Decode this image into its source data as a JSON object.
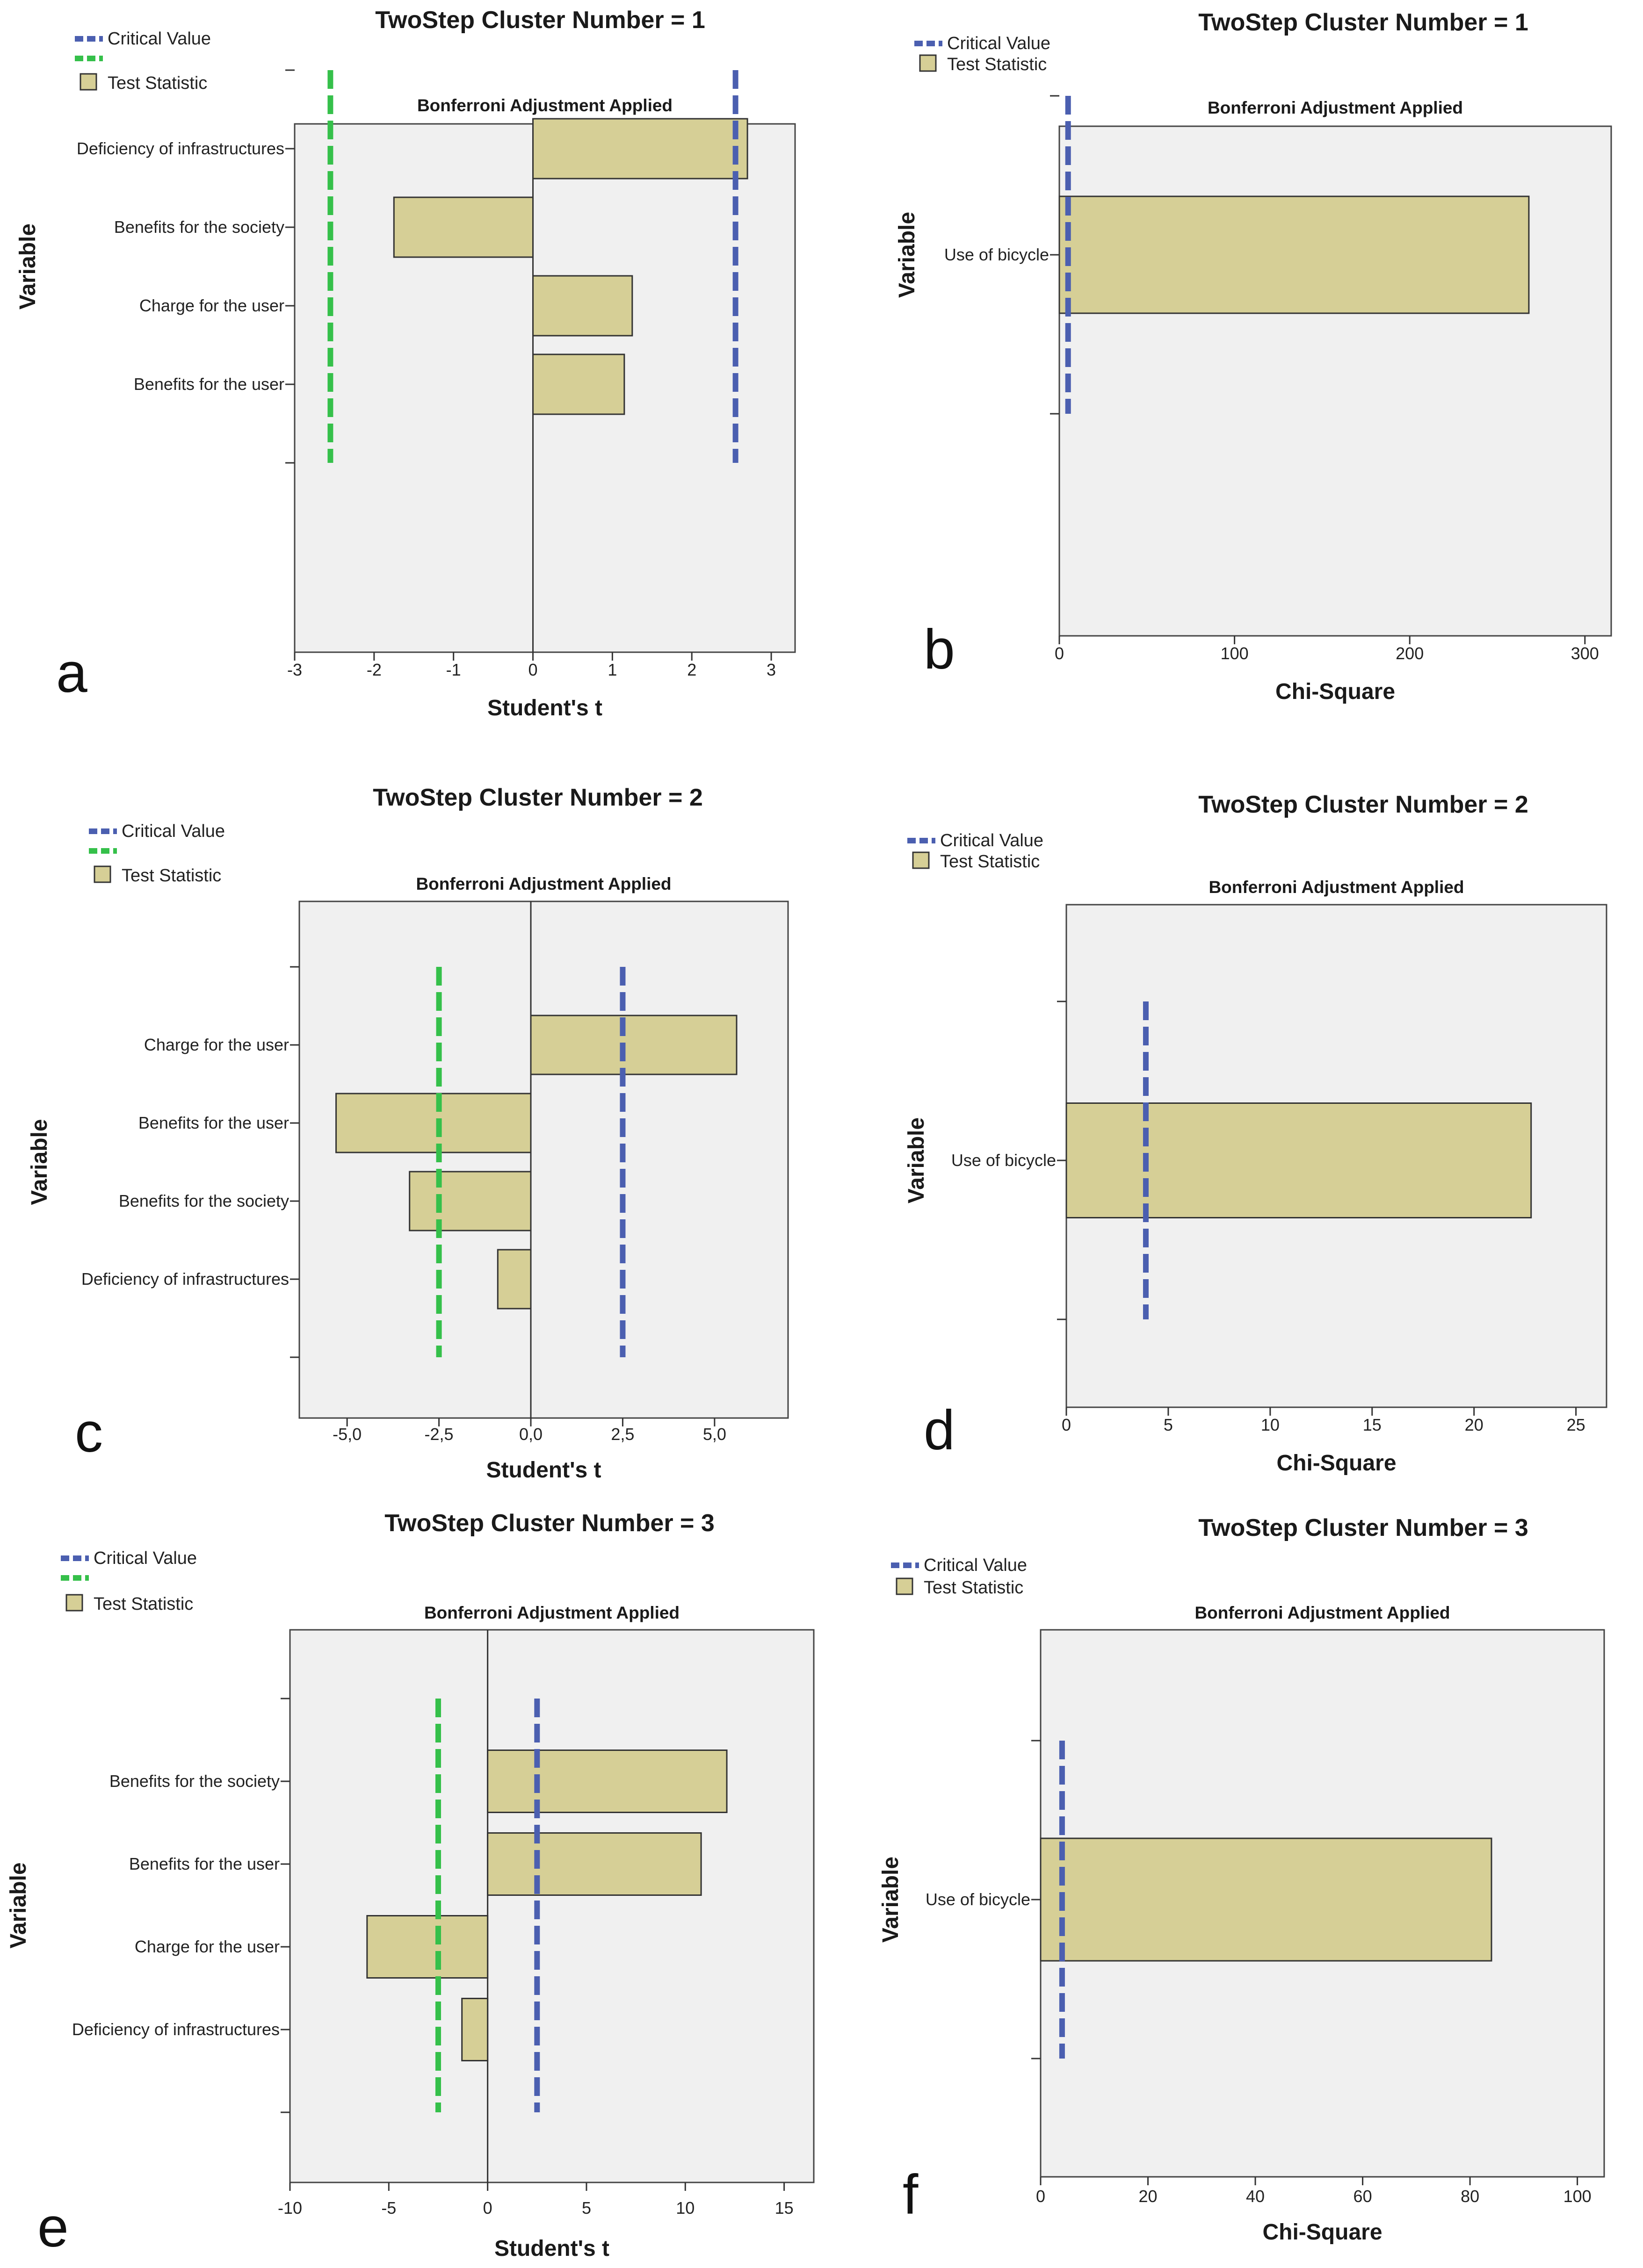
{
  "legend": {
    "critical_value": "Critical Value",
    "test_statistic": "Test Statistic"
  },
  "colors": {
    "bar_fill": "#d6cf96",
    "critical_upper": "#4b5fb0",
    "critical_lower": "#35c04a",
    "plot_background": "#f0f0f0"
  },
  "chart_data": [
    {
      "panel": "a",
      "type": "bar",
      "orientation": "horizontal",
      "title": "TwoStep Cluster Number = 1",
      "subtitle": "Bonferroni Adjustment Applied",
      "xlabel": "Student's t",
      "ylabel": "Variable",
      "xlim": [
        -3,
        3.3
      ],
      "xticks": [
        -3,
        -2,
        -1,
        0,
        1,
        2,
        3
      ],
      "tick_labels": [
        "-3",
        "-2",
        "-1",
        "0",
        "1",
        "2",
        "3"
      ],
      "categories": [
        "Deficiency of infrastructures",
        "Benefits for the society",
        "Charge for the user",
        "Benefits for the user"
      ],
      "values": [
        2.7,
        -1.75,
        1.25,
        1.15
      ],
      "critical_values": [
        -2.55,
        2.55
      ]
    },
    {
      "panel": "b",
      "type": "bar",
      "orientation": "horizontal",
      "title": "TwoStep Cluster Number = 1",
      "subtitle": "Bonferroni Adjustment Applied",
      "xlabel": "Chi-Square",
      "ylabel": "Variable",
      "xlim": [
        0,
        315
      ],
      "xticks": [
        0,
        100,
        200,
        300
      ],
      "tick_labels": [
        "0",
        "100",
        "200",
        "300"
      ],
      "categories": [
        "Use of bicycle"
      ],
      "values": [
        268
      ],
      "critical_values": [
        5
      ]
    },
    {
      "panel": "c",
      "type": "bar",
      "orientation": "horizontal",
      "title": "TwoStep Cluster Number = 2",
      "subtitle": "Bonferroni Adjustment Applied",
      "xlabel": "Student's t",
      "ylabel": "Variable",
      "xlim": [
        -6.3,
        7
      ],
      "xticks": [
        -5,
        -2.5,
        0,
        2.5,
        5
      ],
      "tick_labels": [
        "-5,0",
        "-2,5",
        "0,0",
        "2,5",
        "5,0"
      ],
      "categories": [
        "Charge for the user",
        "Benefits for the user",
        "Benefits for the society",
        "Deficiency of infrastructures"
      ],
      "values": [
        5.6,
        -5.3,
        -3.3,
        -0.9
      ],
      "critical_values": [
        -2.5,
        2.5
      ]
    },
    {
      "panel": "d",
      "type": "bar",
      "orientation": "horizontal",
      "title": "TwoStep Cluster Number = 2",
      "subtitle": "Bonferroni Adjustment Applied",
      "xlabel": "Chi-Square",
      "ylabel": "Variable",
      "xlim": [
        0,
        26.5
      ],
      "xticks": [
        0,
        5,
        10,
        15,
        20,
        25
      ],
      "tick_labels": [
        "0",
        "5",
        "10",
        "15",
        "20",
        "25"
      ],
      "categories": [
        "Use of bicycle"
      ],
      "values": [
        22.8
      ],
      "critical_values": [
        3.9
      ]
    },
    {
      "panel": "e",
      "type": "bar",
      "orientation": "horizontal",
      "title": "TwoStep Cluster Number = 3",
      "subtitle": "Bonferroni Adjustment Applied",
      "xlabel": "Student's t",
      "ylabel": "Variable",
      "xlim": [
        -10,
        16.5
      ],
      "xticks": [
        -10,
        -5,
        0,
        5,
        10,
        15
      ],
      "tick_labels": [
        "-10",
        "-5",
        "0",
        "5",
        "10",
        "15"
      ],
      "categories": [
        "Benefits for the society",
        "Benefits for the user",
        "Charge for the user",
        "Deficiency of infrastructures"
      ],
      "values": [
        12.1,
        10.8,
        -6.1,
        -1.3
      ],
      "critical_values": [
        -2.5,
        2.5
      ]
    },
    {
      "panel": "f",
      "type": "bar",
      "orientation": "horizontal",
      "title": "TwoStep Cluster Number = 3",
      "subtitle": "Bonferroni Adjustment Applied",
      "xlabel": "Chi-Square",
      "ylabel": "Variable",
      "xlim": [
        0,
        105
      ],
      "xticks": [
        0,
        20,
        40,
        60,
        80,
        100
      ],
      "tick_labels": [
        "0",
        "20",
        "40",
        "60",
        "80",
        "100"
      ],
      "categories": [
        "Use of bicycle"
      ],
      "values": [
        84
      ],
      "critical_values": [
        4
      ]
    }
  ]
}
